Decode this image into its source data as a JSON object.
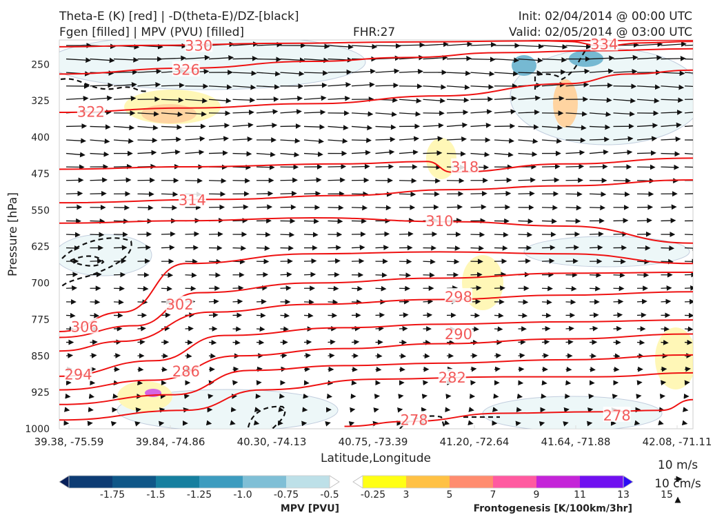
{
  "header": {
    "title_line1": "Theta-E (K) [red] | -D(theta-E)/DZ-[black]",
    "title_line2": "Fgen [filled] | MPV (PVU) [filled]",
    "fhr": "FHR:27",
    "init": "Init: 02/04/2014 @ 00:00 UTC",
    "valid": "Valid: 02/05/2014 @ 03:00 UTC"
  },
  "chart_data": {
    "type": "cross-section",
    "xlabel": "Latitude,Longitude",
    "ylabel": "Pressure [hPa]",
    "x_ticks": [
      "39.38, -75.59",
      "39.84, -74.86",
      "40.30, -74.13",
      "40.75, -73.39",
      "41.20, -72.64",
      "41.64, -71.88",
      "42.08, -71.11"
    ],
    "y_ticks": [
      250,
      325,
      400,
      475,
      550,
      625,
      700,
      775,
      850,
      925,
      1000
    ],
    "ylim": [
      1000,
      200
    ],
    "theta_e_contours": [
      {
        "value": 330,
        "points": [
          [
            0,
            214
          ],
          [
            0.15,
            211
          ],
          [
            0.35,
            207
          ],
          [
            0.55,
            204
          ],
          [
            0.75,
            202
          ],
          [
            1.0,
            200
          ]
        ]
      },
      {
        "value": 334,
        "points": [
          [
            0.72,
            198
          ],
          [
            0.8,
            203
          ],
          [
            0.86,
            212
          ],
          [
            0.92,
            206
          ],
          [
            1.0,
            203
          ]
        ]
      },
      {
        "value": 326,
        "points": [
          [
            0,
            270
          ],
          [
            0.2,
            258
          ],
          [
            0.4,
            244
          ],
          [
            0.55,
            236
          ],
          [
            0.7,
            226
          ],
          [
            0.85,
            222
          ],
          [
            1.0,
            218
          ]
        ]
      },
      {
        "value": 322,
        "points": [
          [
            0,
            349
          ],
          [
            0.2,
            340
          ],
          [
            0.4,
            331
          ],
          [
            0.6,
            315
          ],
          [
            0.8,
            290
          ],
          [
            0.9,
            270
          ],
          [
            1.0,
            262
          ]
        ]
      },
      {
        "value": 318,
        "points": [
          [
            0,
            466
          ],
          [
            0.2,
            461
          ],
          [
            0.45,
            455
          ],
          [
            0.58,
            450
          ],
          [
            0.62,
            472
          ],
          [
            0.8,
            455
          ],
          [
            1.0,
            443
          ]
        ]
      },
      {
        "value": 314,
        "points": [
          [
            0,
            535
          ],
          [
            0.25,
            528
          ],
          [
            0.45,
            520
          ],
          [
            0.62,
            508
          ],
          [
            0.8,
            500
          ],
          [
            1.0,
            488
          ]
        ]
      },
      {
        "value": 310,
        "points": [
          [
            0,
            577
          ],
          [
            0.2,
            572
          ],
          [
            0.4,
            566
          ],
          [
            0.62,
            574
          ],
          [
            0.8,
            583
          ],
          [
            1.0,
            618
          ]
        ]
      },
      {
        "value": 306,
        "points": [
          [
            0,
            800
          ],
          [
            0.1,
            760
          ],
          [
            0.2,
            660
          ],
          [
            0.4,
            640
          ],
          [
            0.6,
            636
          ],
          [
            0.8,
            640
          ],
          [
            1.0,
            660
          ]
        ]
      },
      {
        "value": 302,
        "points": [
          [
            0,
            812
          ],
          [
            0.12,
            788
          ],
          [
            0.22,
            720
          ],
          [
            0.4,
            700
          ],
          [
            0.6,
            690
          ],
          [
            0.8,
            680
          ],
          [
            1.0,
            678
          ]
        ]
      },
      {
        "value": 298,
        "points": [
          [
            0,
            840
          ],
          [
            0.1,
            820
          ],
          [
            0.24,
            760
          ],
          [
            0.4,
            744
          ],
          [
            0.6,
            734
          ],
          [
            0.8,
            725
          ],
          [
            1.0,
            718
          ]
        ]
      },
      {
        "value": 294,
        "points": [
          [
            0,
            892
          ],
          [
            0.15,
            860
          ],
          [
            0.26,
            808
          ],
          [
            0.45,
            792
          ],
          [
            0.6,
            785
          ],
          [
            0.8,
            780
          ],
          [
            1.0,
            776
          ]
        ]
      },
      {
        "value": 290,
        "points": [
          [
            0,
            920
          ],
          [
            0.15,
            900
          ],
          [
            0.28,
            850
          ],
          [
            0.45,
            835
          ],
          [
            0.6,
            825
          ],
          [
            0.8,
            815
          ],
          [
            1.0,
            805
          ]
        ]
      },
      {
        "value": 286,
        "points": [
          [
            0,
            950
          ],
          [
            0.18,
            930
          ],
          [
            0.3,
            880
          ],
          [
            0.45,
            870
          ],
          [
            0.6,
            865
          ],
          [
            0.8,
            858
          ],
          [
            1.0,
            848
          ]
        ]
      },
      {
        "value": 282,
        "points": [
          [
            0,
            982
          ],
          [
            0.2,
            962
          ],
          [
            0.32,
            920
          ],
          [
            0.5,
            898
          ],
          [
            0.7,
            893
          ],
          [
            0.85,
            893
          ],
          [
            1.0,
            885
          ]
        ]
      },
      {
        "value": 278,
        "points": [
          [
            0.45,
            995
          ],
          [
            0.55,
            985
          ],
          [
            0.7,
            968
          ],
          [
            0.85,
            965
          ],
          [
            0.95,
            962
          ],
          [
            1.0,
            940
          ]
        ]
      }
    ],
    "theta_e_labels": [
      {
        "value": 330,
        "x": 0.22,
        "p": 212
      },
      {
        "value": 334,
        "x": 0.86,
        "p": 209
      },
      {
        "value": 326,
        "x": 0.2,
        "p": 262
      },
      {
        "value": 322,
        "x": 0.05,
        "p": 348
      },
      {
        "value": 318,
        "x": 0.64,
        "p": 462
      },
      {
        "value": 314,
        "x": 0.21,
        "p": 530
      },
      {
        "value": 310,
        "x": 0.6,
        "p": 573
      },
      {
        "value": 306,
        "x": 0.04,
        "p": 791
      },
      {
        "value": 302,
        "x": 0.19,
        "p": 745
      },
      {
        "value": 298,
        "x": 0.63,
        "p": 729
      },
      {
        "value": 294,
        "x": 0.03,
        "p": 889
      },
      {
        "value": 290,
        "x": 0.63,
        "p": 806
      },
      {
        "value": 286,
        "x": 0.2,
        "p": 882
      },
      {
        "value": 282,
        "x": 0.62,
        "p": 895
      },
      {
        "value": 278,
        "x": 0.56,
        "p": 982
      },
      {
        "value": 278,
        "x": 0.88,
        "p": 973
      }
    ],
    "colorbars": [
      {
        "name": "MPV [PVU]",
        "ticks": [
          "-1.75",
          "-1.5",
          "-1.25",
          "-1.0",
          "-0.75",
          "-0.5",
          "-0.25"
        ],
        "colors": [
          "#08205a",
          "#0d3c74",
          "#0f5788",
          "#167f9f",
          "#3d9cbf",
          "#7fbfd6",
          "#bde0e8",
          "#ffffff"
        ]
      },
      {
        "name": "Frontogenesis [K/100km/3hr]",
        "ticks": [
          "3",
          "5",
          "7",
          "9",
          "11",
          "13",
          "15"
        ],
        "colors": [
          "#ffffff",
          "#ffff14",
          "#ffc145",
          "#ff8c6f",
          "#ff5aa0",
          "#c424d8",
          "#7010f0",
          "#2b0cf5"
        ]
      }
    ],
    "wind_reference": [
      "10 m/s",
      "10 cm/s"
    ]
  }
}
